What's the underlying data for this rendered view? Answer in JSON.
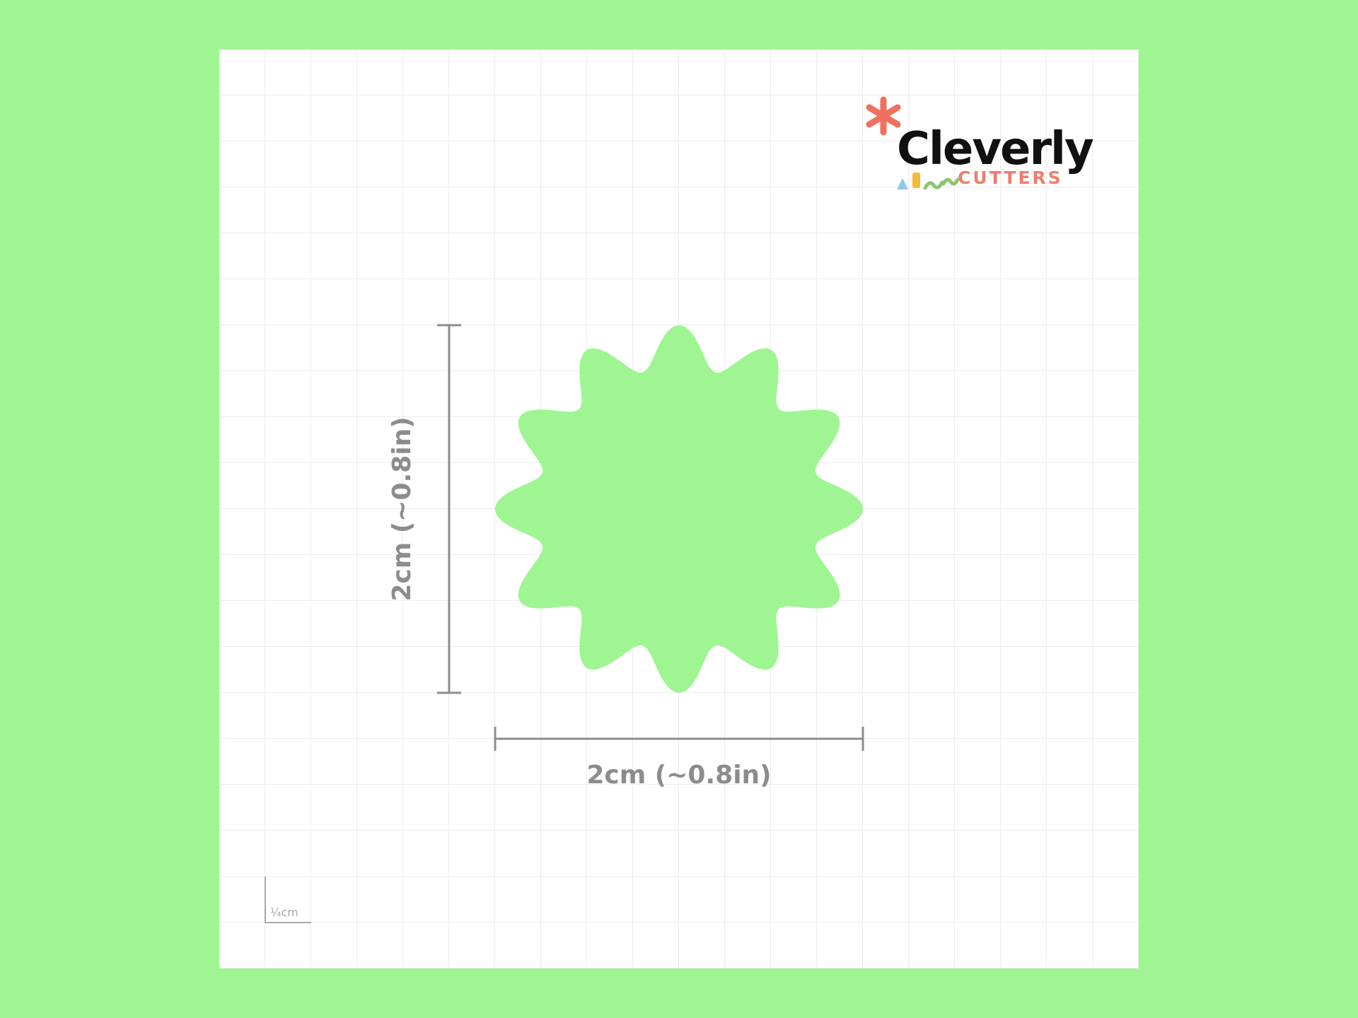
{
  "brand": {
    "name": "Cleverly",
    "subtitle": "CUTTERS",
    "colors": {
      "asterisk": "#f0705e",
      "subtitle": "#ef7d6c",
      "confetti_blue": "#8ec9e8",
      "confetti_yellow": "#f6b93b",
      "confetti_green": "#8cc66f"
    }
  },
  "shape": {
    "type": "scalloped-circle",
    "lobes": 12,
    "fill_color": "#9ef592"
  },
  "dimensions": {
    "height_label": "2cm (~0.8in)",
    "width_label": "2cm (~0.8in)"
  },
  "scale_marker": {
    "label": "¼cm"
  },
  "colors": {
    "background": "#9ef592",
    "sheet": "#ffffff",
    "grid": "#ececec",
    "dimension_lines": "#8c8c8c"
  }
}
